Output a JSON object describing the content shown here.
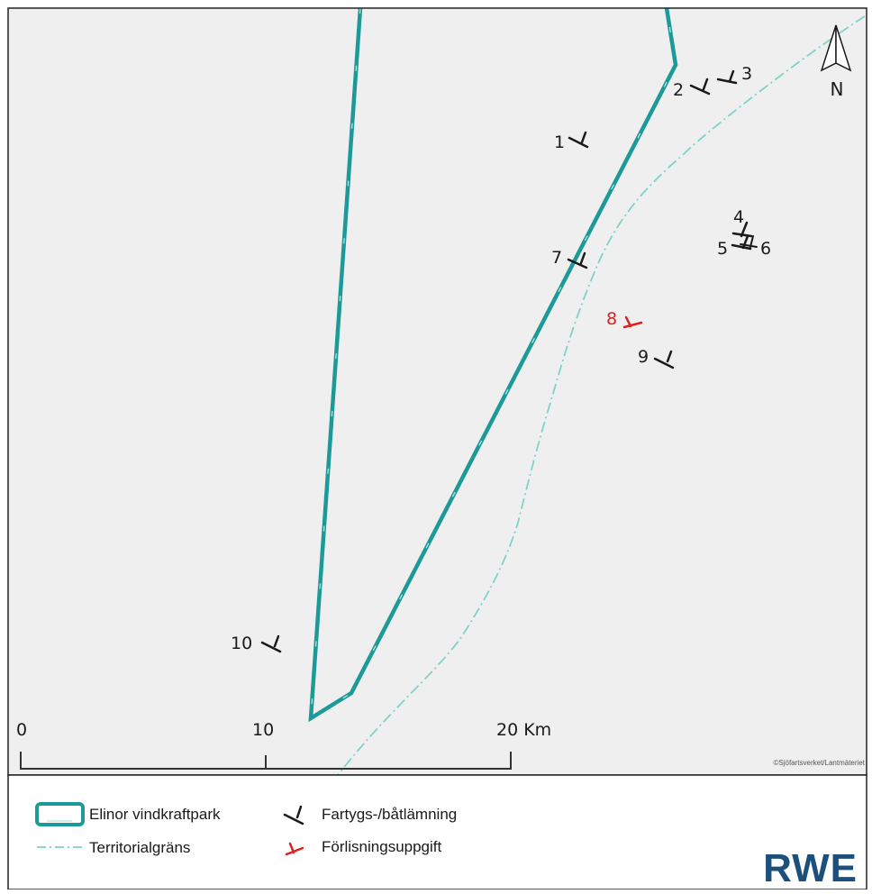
{
  "map": {
    "wrecks": [
      {
        "id": "w1",
        "label": "1",
        "type": "wreck"
      },
      {
        "id": "w2",
        "label": "2",
        "type": "wreck"
      },
      {
        "id": "w3",
        "label": "3",
        "type": "wreck"
      },
      {
        "id": "w4",
        "label": "4",
        "type": "wreck"
      },
      {
        "id": "w5",
        "label": "5",
        "type": "wreck"
      },
      {
        "id": "w6",
        "label": "6",
        "type": "wreck"
      },
      {
        "id": "w7",
        "label": "7",
        "type": "wreck"
      },
      {
        "id": "w8",
        "label": "8",
        "type": "loss-report"
      },
      {
        "id": "w9",
        "label": "9",
        "type": "wreck"
      },
      {
        "id": "w10",
        "label": "10",
        "type": "wreck"
      }
    ],
    "north_label": "N",
    "scale_bar": {
      "labels": [
        "0",
        "10",
        "20 Km"
      ],
      "unit": "Km"
    },
    "attribution": "©Sjöfartsverket/Lantmäteriet"
  },
  "legend": {
    "park": "Elinor vindkraftpark",
    "border": "Territorialgräns",
    "wreck": "Fartygs-/båtlämning",
    "loss": "Förlisningsuppgift"
  },
  "logo": "RWE",
  "colors": {
    "park_outline": "#1c9a98",
    "border_line": "#7fd3c6",
    "wreck_symbol": "#1a1a1a",
    "loss_symbol": "#e0201c",
    "loss_label": "#e0201c",
    "map_background": "#efefef",
    "logo": "#1d4f7c"
  }
}
